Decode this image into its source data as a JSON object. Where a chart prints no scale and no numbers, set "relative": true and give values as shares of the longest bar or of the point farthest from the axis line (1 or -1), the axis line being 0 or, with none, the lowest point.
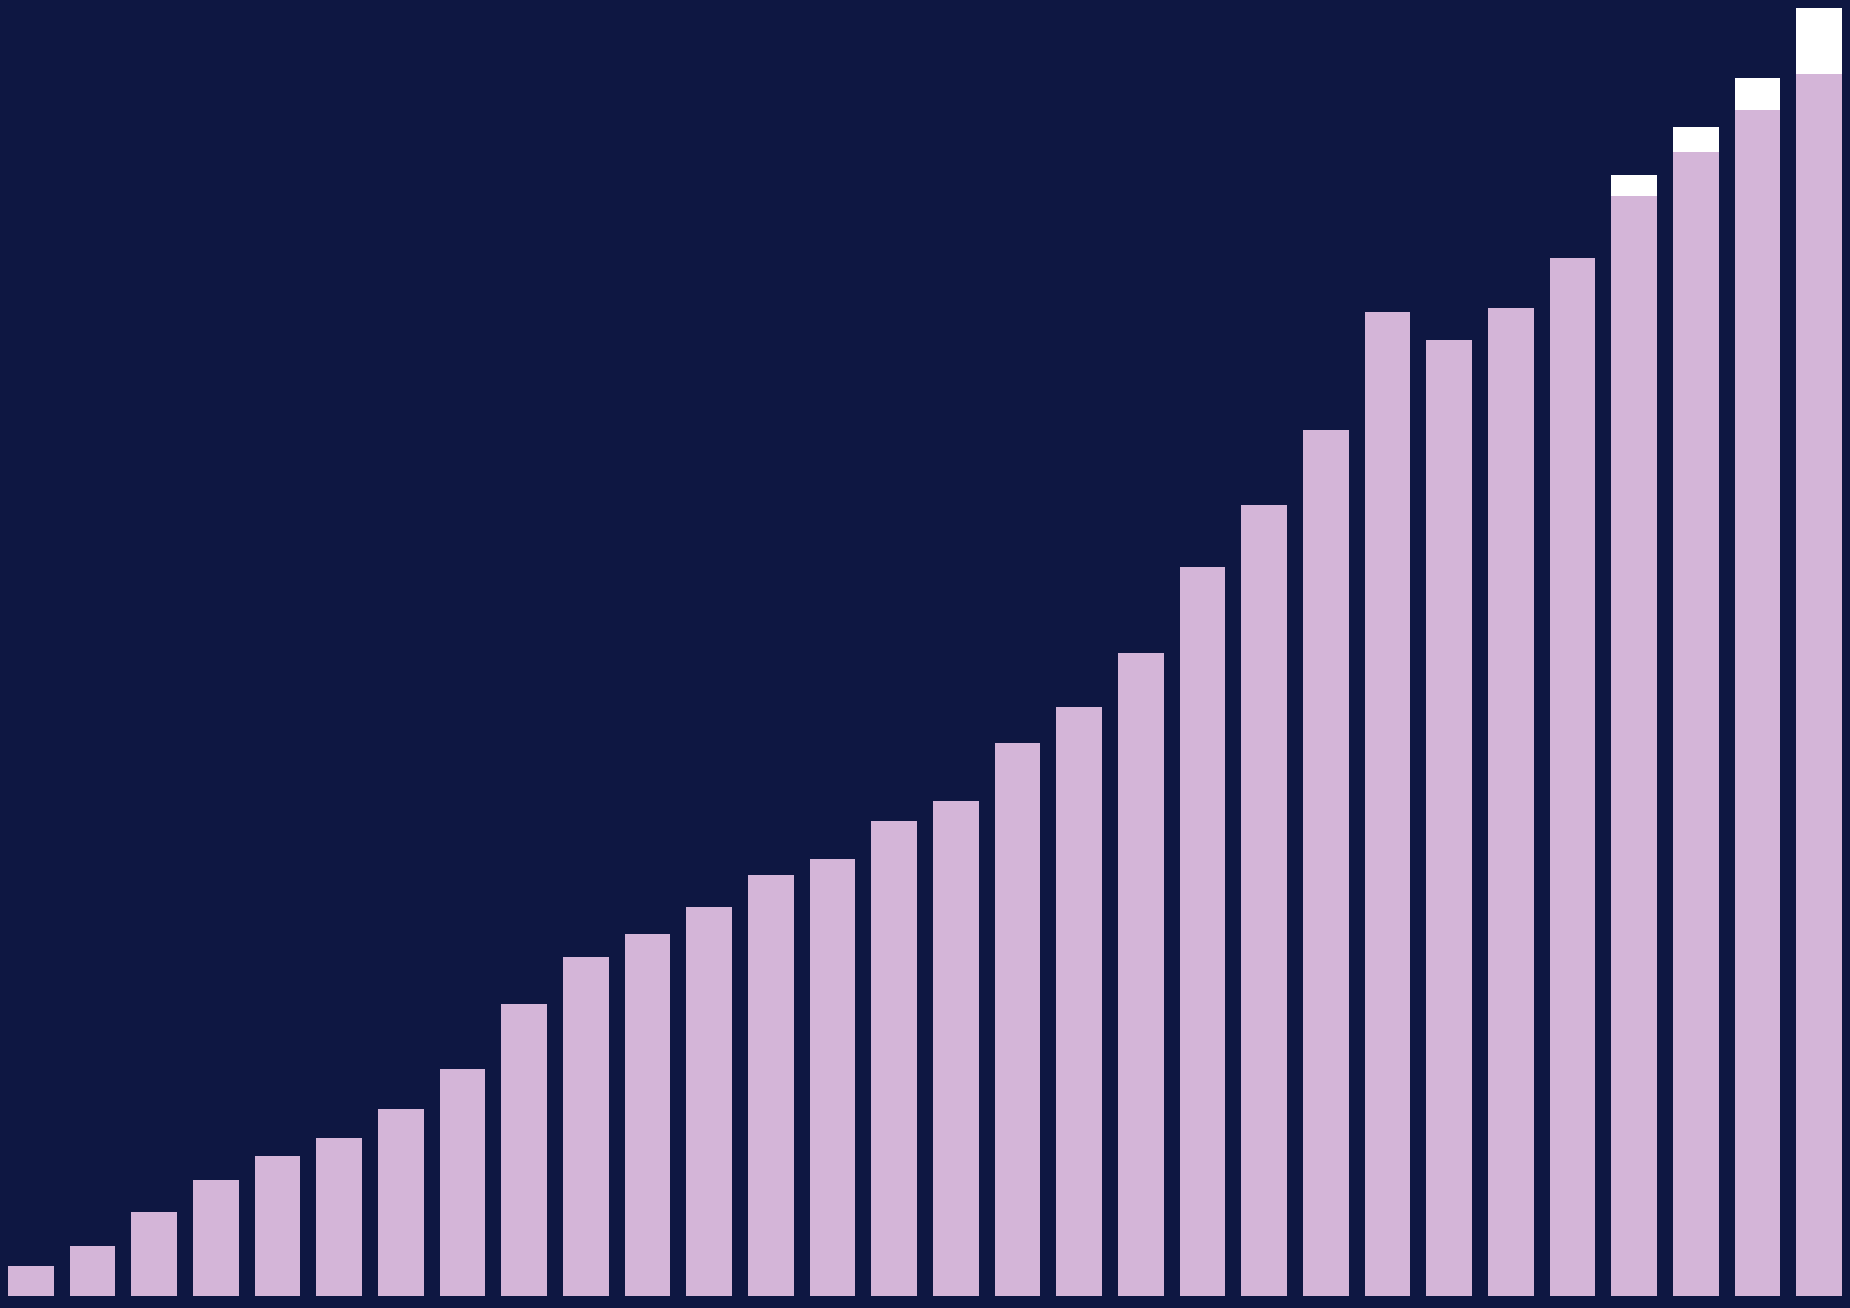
{
  "chart_data": {
    "type": "bar",
    "relative": true,
    "stacked": true,
    "categories": [
      null,
      null,
      null,
      null,
      null,
      null,
      null,
      null,
      null,
      null,
      null,
      null,
      null,
      null,
      null,
      null,
      null,
      null,
      null,
      null,
      null,
      null,
      null,
      null,
      null,
      null,
      null,
      null,
      null,
      null
    ],
    "series": [
      {
        "color": "#d4b5d8",
        "values": [
          0.023,
          0.039,
          0.065,
          0.09,
          0.109,
          0.123,
          0.145,
          0.176,
          0.227,
          0.263,
          0.281,
          0.302,
          0.327,
          0.339,
          0.369,
          0.384,
          0.429,
          0.457,
          0.499,
          0.566,
          0.614,
          0.672,
          0.764,
          0.742,
          0.767,
          0.806,
          0.854,
          0.888,
          0.921,
          0.949
        ]
      },
      {
        "color": "#ffffff",
        "values": [
          null,
          null,
          null,
          null,
          null,
          null,
          null,
          null,
          null,
          null,
          null,
          null,
          null,
          null,
          null,
          null,
          null,
          null,
          null,
          null,
          null,
          null,
          null,
          null,
          null,
          null,
          0.016,
          0.02,
          0.025,
          0.051
        ]
      }
    ]
  }
}
